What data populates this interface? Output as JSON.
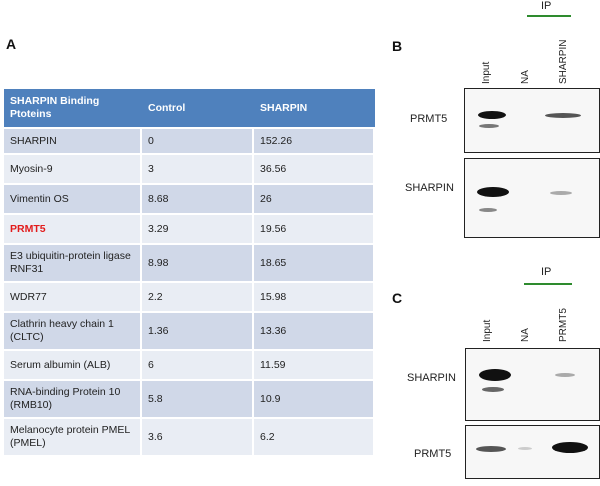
{
  "panels": {
    "a": "A",
    "b": "B",
    "c": "C"
  },
  "table": {
    "headers": [
      "SHARPIN Binding Ptoteins",
      "Control",
      "SHARPIN"
    ],
    "rows": [
      [
        "SHARPIN",
        "0",
        "152.26"
      ],
      [
        "Myosin-9",
        "3",
        "36.56"
      ],
      [
        "Vimentin OS",
        "8.68",
        "26"
      ],
      [
        "PRMT5",
        "3.29",
        "19.56"
      ],
      [
        "E3 ubiquitin-protein ligase RNF31",
        "8.98",
        "18.65"
      ],
      [
        "WDR77",
        "2.2",
        "15.98"
      ],
      [
        "Clathrin heavy chain 1 (CLTC)",
        "1.36",
        "13.36"
      ],
      [
        "Serum albumin (ALB)",
        "6",
        "11.59"
      ],
      [
        "RNA-binding Protein 10 (RMB10)",
        "5.8",
        "10.9"
      ],
      [
        "Melanocyte protein PMEL (PMEL)",
        "3.6",
        "6.2"
      ]
    ],
    "highlight_color": "#e21b1b"
  },
  "blot_b": {
    "ip_label": "IP",
    "lanes": [
      "Input",
      "NA",
      "SHARPIN"
    ],
    "rows": [
      "PRMT5",
      "SHARPIN"
    ]
  },
  "blot_c": {
    "ip_label": "IP",
    "lanes": [
      "Input",
      "NA",
      "PRMT5"
    ],
    "rows": [
      "SHARPIN",
      "PRMT5"
    ]
  }
}
